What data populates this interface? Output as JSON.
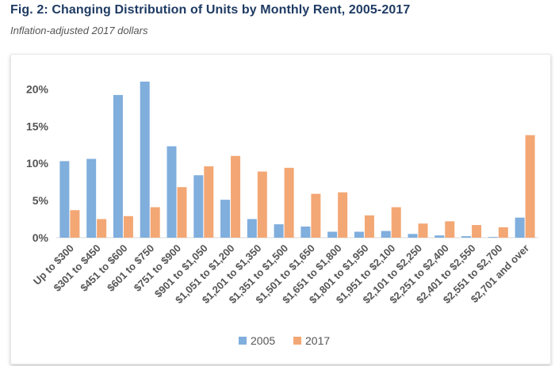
{
  "header": {
    "title": "Fig. 2: Changing Distribution of Units by Monthly Rent, 2005-2017",
    "subtitle": "Inflation-adjusted 2017 dollars"
  },
  "chart_data": {
    "type": "bar",
    "categories": [
      "Up to $300",
      "$301 to $450",
      "$451 to $600",
      "$601 to $750",
      "$751 to $900",
      "$901 to $1,050",
      "$1,051 to $1,200",
      "$1,201 to $1,350",
      "$1,351 to $1,500",
      "$1,501 to $1,650",
      "$1,651 to $1,800",
      "$1,801 to $1,950",
      "$1,951 to $2,100",
      "$2,101 to $2,250",
      "$2,251 to $2,400",
      "$2,401 to $2,550",
      "$2,551 to $2,700",
      "$2,701 and over"
    ],
    "series": [
      {
        "name": "2005",
        "color": "#80aedd",
        "values": [
          10.3,
          10.6,
          19.2,
          21.0,
          12.3,
          8.4,
          5.1,
          2.5,
          1.8,
          1.5,
          0.8,
          0.8,
          0.9,
          0.5,
          0.3,
          0.2,
          0.1,
          2.7
        ]
      },
      {
        "name": "2017",
        "color": "#f3a774",
        "values": [
          3.7,
          2.5,
          2.9,
          4.1,
          6.8,
          9.6,
          11.0,
          8.9,
          9.4,
          5.9,
          6.1,
          3.0,
          4.1,
          1.9,
          2.2,
          1.7,
          1.4,
          13.8
        ]
      }
    ],
    "y_ticks": [
      "0%",
      "5%",
      "10%",
      "15%",
      "20%"
    ],
    "ylim": [
      0,
      22
    ],
    "xlabel": "",
    "ylabel": "",
    "legend_position": "bottom-center",
    "gridlines": false
  }
}
